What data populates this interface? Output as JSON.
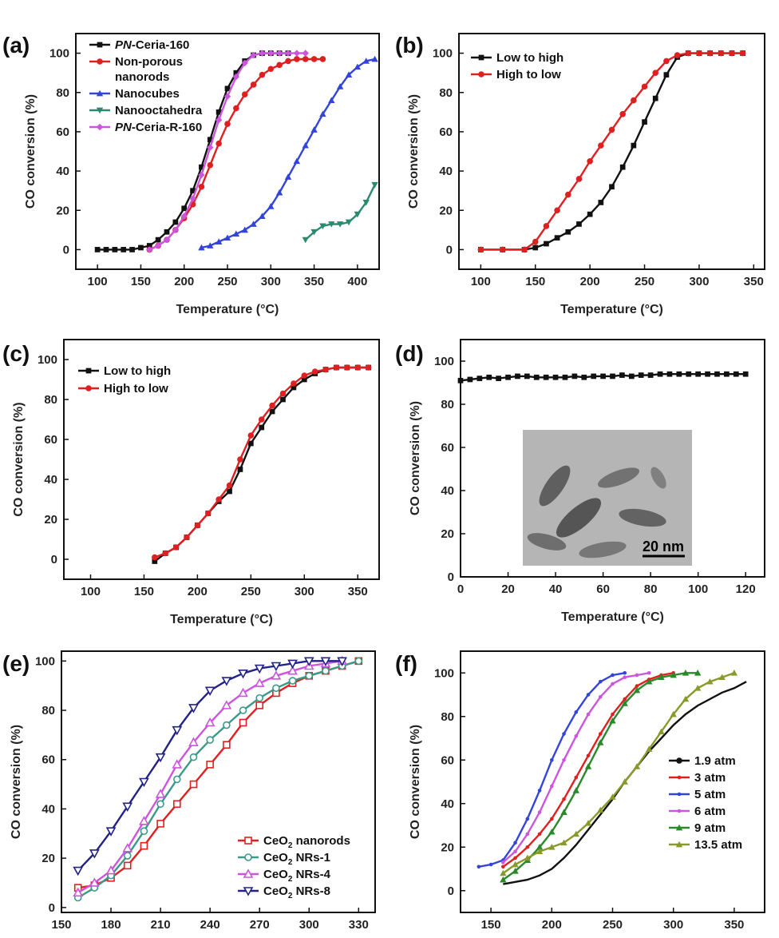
{
  "chart_data": [
    {
      "panel": "(a)",
      "type": "line",
      "xlabel": "Temperature (°C)",
      "ylabel": "CO conversion (%)",
      "xlim": [
        75,
        425
      ],
      "ylim": [
        -10,
        110
      ],
      "xticks": [
        100,
        150,
        200,
        250,
        300,
        350,
        400
      ],
      "yticks": [
        0,
        20,
        40,
        60,
        80,
        100
      ],
      "legend_position": "top-left",
      "series": [
        {
          "name": "PN-Ceria-160",
          "italic_prefix": "PN",
          "rest": "-Ceria-160",
          "color": "#111111",
          "marker": "square",
          "x": [
            100,
            110,
            120,
            130,
            140,
            150,
            160,
            170,
            180,
            190,
            200,
            210,
            220,
            230,
            240,
            250,
            260,
            270,
            280,
            290,
            300,
            310,
            320
          ],
          "y": [
            0,
            0,
            0,
            0,
            0,
            1,
            2,
            5,
            9,
            14,
            21,
            30,
            42,
            56,
            70,
            82,
            90,
            96,
            99,
            100,
            100,
            100,
            100
          ]
        },
        {
          "name": "Non-porous nanorods",
          "color": "#e02020",
          "marker": "circle",
          "x": [
            160,
            170,
            180,
            190,
            200,
            210,
            220,
            230,
            240,
            250,
            260,
            270,
            280,
            290,
            300,
            310,
            320,
            330,
            340,
            350,
            360
          ],
          "y": [
            0,
            2,
            5,
            10,
            16,
            23,
            32,
            43,
            54,
            64,
            72,
            79,
            84,
            89,
            92,
            94,
            96,
            97,
            97,
            97,
            97
          ]
        },
        {
          "name": "Nanocubes",
          "color": "#3344dd",
          "marker": "triangle-up",
          "x": [
            220,
            230,
            240,
            250,
            260,
            270,
            280,
            290,
            300,
            310,
            320,
            330,
            340,
            350,
            360,
            370,
            380,
            390,
            400,
            410,
            420
          ],
          "y": [
            1,
            2,
            4,
            6,
            8,
            10,
            13,
            17,
            22,
            29,
            37,
            45,
            53,
            61,
            69,
            76,
            83,
            89,
            93,
            96,
            97
          ]
        },
        {
          "name": "Nanooctahedra",
          "color": "#2a8a70",
          "marker": "triangle-down",
          "x": [
            340,
            350,
            360,
            370,
            380,
            390,
            400,
            410,
            420
          ],
          "y": [
            5,
            9,
            12,
            13,
            13,
            14,
            18,
            24,
            33
          ]
        },
        {
          "name": "PN-Ceria-R-160",
          "italic_prefix": "PN",
          "rest": "-Ceria-R-160",
          "color": "#cc55dd",
          "marker": "diamond",
          "x": [
            160,
            170,
            180,
            190,
            200,
            210,
            220,
            230,
            240,
            250,
            260,
            270,
            280,
            290,
            300,
            310,
            320,
            330,
            340
          ],
          "y": [
            0,
            2,
            5,
            10,
            17,
            26,
            38,
            52,
            66,
            78,
            88,
            95,
            99,
            100,
            100,
            100,
            100,
            100,
            100
          ]
        }
      ]
    },
    {
      "panel": "(b)",
      "type": "line",
      "xlabel": "Temperature (°C)",
      "ylabel": "CO conversion (%)",
      "xlim": [
        80,
        360
      ],
      "ylim": [
        -10,
        110
      ],
      "xticks": [
        100,
        150,
        200,
        250,
        300,
        350
      ],
      "yticks": [
        0,
        20,
        40,
        60,
        80,
        100
      ],
      "legend_position": "top-left",
      "series": [
        {
          "name": "Low to high",
          "color": "#111111",
          "marker": "square",
          "x": [
            100,
            120,
            140,
            150,
            160,
            170,
            180,
            190,
            200,
            210,
            220,
            230,
            240,
            250,
            260,
            270,
            280,
            290,
            300,
            310,
            320,
            330,
            340
          ],
          "y": [
            0,
            0,
            0,
            1,
            3,
            6,
            9,
            13,
            18,
            24,
            32,
            42,
            53,
            65,
            77,
            89,
            98,
            100,
            100,
            100,
            100,
            100,
            100
          ]
        },
        {
          "name": "High to low",
          "color": "#e02020",
          "marker": "circle",
          "x": [
            100,
            120,
            140,
            150,
            160,
            170,
            180,
            190,
            200,
            210,
            220,
            230,
            240,
            250,
            260,
            270,
            280,
            290,
            300,
            310,
            320,
            330,
            340
          ],
          "y": [
            0,
            0,
            0,
            4,
            12,
            20,
            28,
            36,
            45,
            53,
            61,
            69,
            76,
            83,
            90,
            96,
            99,
            100,
            100,
            100,
            100,
            100,
            100
          ]
        }
      ]
    },
    {
      "panel": "(c)",
      "type": "line",
      "xlabel": "Temperature (°C)",
      "ylabel": "CO conversion (%)",
      "xlim": [
        75,
        370
      ],
      "ylim": [
        -10,
        110
      ],
      "xticks": [
        100,
        150,
        200,
        250,
        300,
        350
      ],
      "yticks": [
        0,
        20,
        40,
        60,
        80,
        100
      ],
      "legend_position": "top-left",
      "series": [
        {
          "name": "Low to high",
          "color": "#111111",
          "marker": "square",
          "x": [
            160,
            170,
            180,
            190,
            200,
            210,
            220,
            230,
            240,
            250,
            260,
            270,
            280,
            290,
            300,
            310,
            320,
            330,
            340,
            350,
            360
          ],
          "y": [
            -1,
            3,
            6,
            11,
            17,
            23,
            29,
            34,
            45,
            58,
            66,
            74,
            80,
            86,
            90,
            93,
            95,
            96,
            96,
            96,
            96
          ]
        },
        {
          "name": "High to low",
          "color": "#e02020",
          "marker": "circle",
          "x": [
            160,
            170,
            180,
            190,
            200,
            210,
            220,
            230,
            240,
            250,
            260,
            270,
            280,
            290,
            300,
            310,
            320,
            330,
            340,
            350,
            360
          ],
          "y": [
            1,
            3,
            6,
            11,
            17,
            23,
            30,
            37,
            50,
            62,
            70,
            77,
            83,
            88,
            92,
            94,
            95,
            96,
            96,
            96,
            96
          ]
        }
      ]
    },
    {
      "panel": "(d)",
      "type": "line",
      "xlabel": "Temperature (°C)",
      "ylabel": "CO conversion (%)",
      "xlim": [
        0,
        128
      ],
      "ylim": [
        0,
        110
      ],
      "xticks": [
        0,
        20,
        40,
        60,
        80,
        100,
        120
      ],
      "yticks": [
        0,
        20,
        40,
        60,
        80,
        100
      ],
      "inset_scale_label": "20 nm",
      "series": [
        {
          "name": "",
          "color": "#111111",
          "marker": "square",
          "x": [
            0,
            4,
            8,
            12,
            16,
            20,
            24,
            28,
            32,
            36,
            40,
            44,
            48,
            52,
            56,
            60,
            64,
            68,
            72,
            76,
            80,
            84,
            88,
            92,
            96,
            100,
            104,
            108,
            112,
            116,
            120
          ],
          "y": [
            91,
            91.5,
            92,
            92.5,
            92,
            92.5,
            93,
            93,
            92.5,
            92.5,
            92.5,
            92.5,
            93,
            92.5,
            93,
            93,
            93,
            93.5,
            93,
            93.5,
            93.5,
            94,
            94,
            94,
            94,
            94,
            94,
            94,
            94,
            94,
            94
          ]
        }
      ]
    },
    {
      "panel": "(e)",
      "type": "line",
      "xlabel": "Temperature (°C)",
      "ylabel": "CO conversion (%)",
      "xlim": [
        150,
        340
      ],
      "ylim": [
        -2,
        104
      ],
      "xticks": [
        150,
        180,
        210,
        240,
        270,
        300,
        330
      ],
      "yticks": [
        0,
        20,
        40,
        60,
        80,
        100
      ],
      "legend_position": "bottom-right",
      "series": [
        {
          "name": "CeO2 nanorods",
          "color": "#e02020",
          "marker": "open-square",
          "x": [
            160,
            170,
            180,
            190,
            200,
            210,
            220,
            230,
            240,
            250,
            260,
            270,
            280,
            290,
            300,
            310,
            320,
            330
          ],
          "y": [
            8,
            9,
            12,
            17,
            25,
            34,
            42,
            50,
            58,
            66,
            75,
            82,
            87,
            91,
            94,
            96,
            98,
            100
          ]
        },
        {
          "name": "CeO2 NRs-1",
          "color": "#3a9a8a",
          "marker": "open-circle",
          "x": [
            160,
            170,
            180,
            190,
            200,
            210,
            220,
            230,
            240,
            250,
            260,
            270,
            280,
            290,
            300,
            310,
            320,
            330
          ],
          "y": [
            4,
            8,
            13,
            21,
            31,
            42,
            52,
            61,
            68,
            74,
            80,
            85,
            89,
            92,
            94,
            96,
            98,
            100
          ]
        },
        {
          "name": "CeO2 NRs-4",
          "color": "#cc55dd",
          "marker": "open-triangle",
          "x": [
            160,
            170,
            180,
            190,
            200,
            210,
            220,
            230,
            240,
            250,
            260,
            270,
            280,
            290,
            300,
            310,
            320
          ],
          "y": [
            6,
            10,
            15,
            24,
            35,
            46,
            58,
            67,
            75,
            82,
            87,
            91,
            94,
            96,
            98,
            99,
            100
          ]
        },
        {
          "name": "CeO2 NRs-8",
          "color": "#222288",
          "marker": "open-triangle-down",
          "x": [
            160,
            170,
            180,
            190,
            200,
            210,
            220,
            230,
            240,
            250,
            260,
            270,
            280,
            290,
            300,
            310,
            320
          ],
          "y": [
            15,
            22,
            31,
            41,
            51,
            61,
            72,
            81,
            88,
            92,
            95,
            97,
            98,
            99,
            100,
            100,
            100
          ]
        }
      ]
    },
    {
      "panel": "(f)",
      "type": "line",
      "xlabel": "Temperature (°C)",
      "ylabel": "CO conversion (%)",
      "xlim": [
        125,
        375
      ],
      "ylim": [
        -10,
        110
      ],
      "xticks": [
        150,
        200,
        250,
        300,
        350
      ],
      "yticks": [
        0,
        20,
        40,
        60,
        80,
        100
      ],
      "legend_position": "bottom-right",
      "series": [
        {
          "name": "1.9 atm",
          "color": "#111111",
          "marker": "none",
          "x": [
            160,
            170,
            180,
            190,
            200,
            210,
            220,
            230,
            240,
            250,
            260,
            270,
            280,
            290,
            300,
            310,
            320,
            330,
            340,
            350,
            360
          ],
          "y": [
            3,
            4,
            5,
            7,
            10,
            15,
            21,
            28,
            35,
            42,
            50,
            57,
            64,
            70,
            76,
            81,
            85,
            88,
            91,
            93,
            96
          ]
        },
        {
          "name": "3 atm",
          "color": "#e02020",
          "marker": "dot",
          "x": [
            160,
            170,
            180,
            190,
            200,
            210,
            220,
            230,
            240,
            250,
            260,
            270,
            280,
            290,
            300
          ],
          "y": [
            11,
            15,
            20,
            26,
            33,
            42,
            52,
            62,
            72,
            81,
            88,
            94,
            97,
            99,
            100
          ]
        },
        {
          "name": "5 atm",
          "color": "#3344dd",
          "marker": "dot",
          "x": [
            140,
            150,
            160,
            170,
            180,
            190,
            200,
            210,
            220,
            230,
            240,
            250,
            260
          ],
          "y": [
            11,
            12,
            14,
            22,
            33,
            46,
            60,
            72,
            82,
            90,
            96,
            99,
            100
          ]
        },
        {
          "name": "6 atm",
          "color": "#cc55dd",
          "marker": "dot",
          "x": [
            160,
            170,
            180,
            190,
            200,
            210,
            220,
            230,
            240,
            250,
            260,
            270,
            280
          ],
          "y": [
            13,
            18,
            26,
            36,
            48,
            60,
            71,
            81,
            89,
            95,
            98,
            99,
            100
          ]
        },
        {
          "name": "9 atm",
          "color": "#2a8a2a",
          "marker": "triangle",
          "x": [
            160,
            170,
            180,
            190,
            200,
            210,
            220,
            230,
            240,
            250,
            260,
            270,
            280,
            290,
            300,
            310,
            320
          ],
          "y": [
            5,
            9,
            14,
            20,
            27,
            36,
            46,
            57,
            68,
            78,
            86,
            92,
            96,
            98,
            99,
            100,
            100
          ]
        },
        {
          "name": "13.5 atm",
          "color": "#8a9a2a",
          "marker": "triangle",
          "x": [
            160,
            170,
            180,
            190,
            200,
            210,
            220,
            230,
            240,
            250,
            260,
            270,
            280,
            290,
            300,
            310,
            320,
            330,
            340,
            350
          ],
          "y": [
            8,
            12,
            15,
            18,
            20,
            22,
            26,
            31,
            37,
            43,
            50,
            57,
            65,
            73,
            81,
            88,
            93,
            96,
            98,
            100
          ]
        }
      ]
    }
  ]
}
